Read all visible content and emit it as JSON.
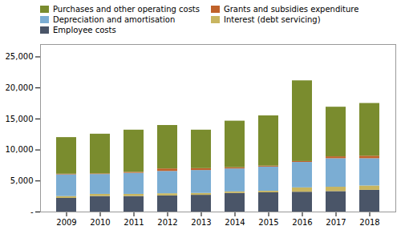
{
  "chart_data": {
    "type": "bar",
    "stacked": true,
    "legend": "top",
    "categories": [
      "2009",
      "2010",
      "2011",
      "2012",
      "2013",
      "2014",
      "2015",
      "2016",
      "2017",
      "2018"
    ],
    "series": [
      {
        "name": "Employee costs",
        "color": "#4a5568",
        "values": [
          2200,
          2500,
          2500,
          2600,
          2700,
          3000,
          3100,
          3200,
          3300,
          3500
        ]
      },
      {
        "name": "Interest (debt servicing)",
        "color": "#c8b560",
        "values": [
          300,
          350,
          350,
          350,
          300,
          250,
          250,
          700,
          700,
          700
        ]
      },
      {
        "name": "Depreciation and amortisation",
        "color": "#7badd3",
        "values": [
          3500,
          3200,
          3400,
          3600,
          3700,
          3700,
          3900,
          4100,
          4600,
          4400
        ]
      },
      {
        "name": "Grants and subsidies expenditure",
        "color": "#c0622a",
        "values": [
          100,
          100,
          150,
          400,
          300,
          200,
          150,
          150,
          300,
          400
        ]
      },
      {
        "name": "Purchases and other operating costs",
        "color": "#7a8c2e",
        "values": [
          5900,
          6400,
          6800,
          7000,
          6200,
          7500,
          8100,
          13000,
          8000,
          8500
        ]
      }
    ],
    "ylim": [
      0,
      27000
    ],
    "yticks": [
      {
        "value": 0,
        "label": "-"
      },
      {
        "value": 5000,
        "label": "5,000"
      },
      {
        "value": 10000,
        "label": "10,000"
      },
      {
        "value": 15000,
        "label": "15,000"
      },
      {
        "value": 20000,
        "label": "20,000"
      },
      {
        "value": 25000,
        "label": "25,000"
      }
    ]
  }
}
